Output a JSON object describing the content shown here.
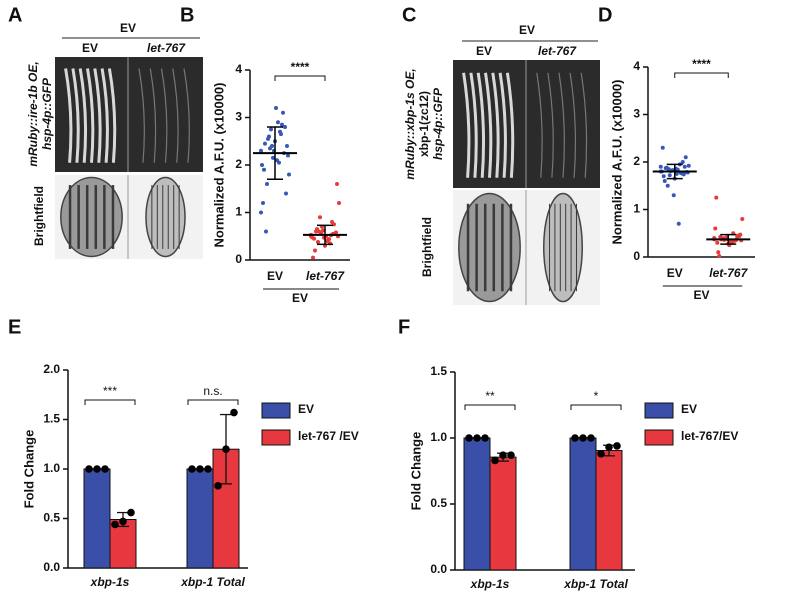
{
  "panel_labels": [
    "A",
    "B",
    "C",
    "D",
    "E",
    "F"
  ],
  "image_panels": [
    {
      "group_label": "EV",
      "columns": [
        "EV",
        "let-767"
      ],
      "fluorescence_label": [
        "mRuby::ire-1b OE,",
        "hsp-4p::GFP"
      ],
      "brightfield_label": "Brightfield"
    },
    {
      "group_label": "EV",
      "columns": [
        "EV",
        "let-767"
      ],
      "fluorescence_label": [
        "mRuby::xbp-1s OE,",
        "xbp-1(zc12)",
        "hsp-4p::GFP"
      ],
      "brightfield_label": "Brightfield"
    }
  ],
  "chart_data": [
    {
      "type": "dot",
      "ylabel": "Normalized A.F.U. (x10000)",
      "ylim": [
        0,
        4
      ],
      "yticks": [
        0,
        1,
        2,
        3,
        4
      ],
      "categories": [
        "EV",
        "let-767"
      ],
      "group_label": "EV",
      "significance": "****",
      "groups": [
        {
          "color": "#3858b8",
          "mean": 2.25,
          "sd": 0.55,
          "values": [
            2.3,
            2.6,
            2.1,
            2.8,
            1.9,
            2.4,
            2.7,
            2.2,
            1.6,
            2.5,
            3.1,
            2.0,
            2.35,
            2.9,
            1.4,
            2.45,
            2.15,
            2.65,
            1.8,
            2.55,
            3.2,
            2.25,
            1.2,
            2.75,
            2.05,
            2.4,
            0.6,
            2.3,
            2.85,
            1.0
          ]
        },
        {
          "color": "#e83a3a",
          "mean": 0.53,
          "sd": 0.2,
          "values": [
            0.5,
            0.6,
            0.4,
            0.55,
            0.45,
            0.7,
            0.35,
            0.5,
            0.65,
            0.3,
            0.55,
            0.48,
            0.9,
            0.42,
            0.58,
            0.2,
            0.62,
            0.52,
            1.2,
            0.38,
            0.5,
            0.75,
            0.05,
            0.56,
            0.44,
            1.6,
            0.6,
            0.47,
            0.8,
            0.53
          ]
        }
      ]
    },
    {
      "type": "dot",
      "ylabel": "Normalized A.F.U. (x10000)",
      "ylim": [
        0,
        4
      ],
      "yticks": [
        0,
        1,
        2,
        3,
        4
      ],
      "categories": [
        "EV",
        "let-767"
      ],
      "group_label": "EV",
      "significance": "****",
      "groups": [
        {
          "color": "#3858b8",
          "mean": 1.8,
          "sd": 0.15,
          "values": [
            1.8,
            1.85,
            1.75,
            1.9,
            1.7,
            1.82,
            1.95,
            1.78,
            1.88,
            1.65,
            2.0,
            1.8,
            1.72,
            1.84,
            2.1,
            1.6,
            1.83,
            1.77,
            1.92,
            1.5,
            1.86,
            1.74,
            2.3,
            1.81,
            0.7,
            1.79,
            1.87,
            1.3,
            1.76,
            1.9
          ]
        },
        {
          "color": "#e83a3a",
          "mean": 0.37,
          "sd": 0.1,
          "values": [
            0.37,
            0.4,
            0.33,
            0.45,
            0.3,
            0.38,
            0.5,
            0.35,
            0.42,
            0.28,
            0.36,
            0.6,
            0.39,
            0.32,
            0.44,
            0.1,
            0.41,
            0.34,
            0.8,
            0.37,
            0.25,
            0.43,
            1.25,
            0.36,
            0.31,
            0.47,
            0.02,
            0.38,
            0.35,
            0.4
          ]
        }
      ]
    },
    {
      "type": "bar",
      "ylabel": "Fold Change",
      "ylim": [
        0,
        2
      ],
      "yticks": [
        {
          "value": 0,
          "label": "0.0"
        },
        {
          "value": 0.5,
          "label": "0.5"
        },
        {
          "value": 1,
          "label": "1.0"
        },
        {
          "value": 1.5,
          "label": "1.5"
        },
        {
          "value": 2,
          "label": "2.0"
        }
      ],
      "categories": [
        "xbp-1s",
        "xbp-1 Total"
      ],
      "significance": [
        "***",
        "n.s."
      ],
      "legend": "right",
      "series": [
        {
          "name": "EV",
          "color": "#3a50a8",
          "values": [
            1,
            1
          ],
          "errors": [
            0,
            0
          ],
          "points": [
            [
              1,
              1,
              1
            ],
            [
              1,
              1,
              1
            ]
          ]
        },
        {
          "name": "let-767 /EV",
          "color": "#e8383f",
          "values": [
            0.49,
            1.2
          ],
          "errors": [
            0.07,
            0.35
          ],
          "points": [
            [
              0.44,
              0.47,
              0.56
            ],
            [
              0.83,
              1.2,
              1.57
            ]
          ]
        }
      ]
    },
    {
      "type": "bar",
      "ylabel": "Fold Change",
      "ylim": [
        0,
        1.5
      ],
      "yticks": [
        {
          "value": 0,
          "label": "0.0"
        },
        {
          "value": 0.5,
          "label": "0.5"
        },
        {
          "value": 1,
          "label": "1.0"
        },
        {
          "value": 1.5,
          "label": "1.5"
        }
      ],
      "categories": [
        "xbp-1s",
        "xbp-1 Total"
      ],
      "significance": [
        "**",
        "*"
      ],
      "legend": "right",
      "series": [
        {
          "name": "EV",
          "color": "#3a50a8",
          "values": [
            1,
            1
          ],
          "errors": [
            0,
            0
          ],
          "points": [
            [
              1,
              1,
              1
            ],
            [
              1,
              1,
              1
            ]
          ]
        },
        {
          "name": "let-767/EV",
          "color": "#e8383f",
          "values": [
            0.855,
            0.905
          ],
          "errors": [
            0.03,
            0.04
          ],
          "points": [
            [
              0.83,
              0.87,
              0.87
            ],
            [
              0.88,
              0.93,
              0.94
            ]
          ]
        }
      ]
    }
  ]
}
